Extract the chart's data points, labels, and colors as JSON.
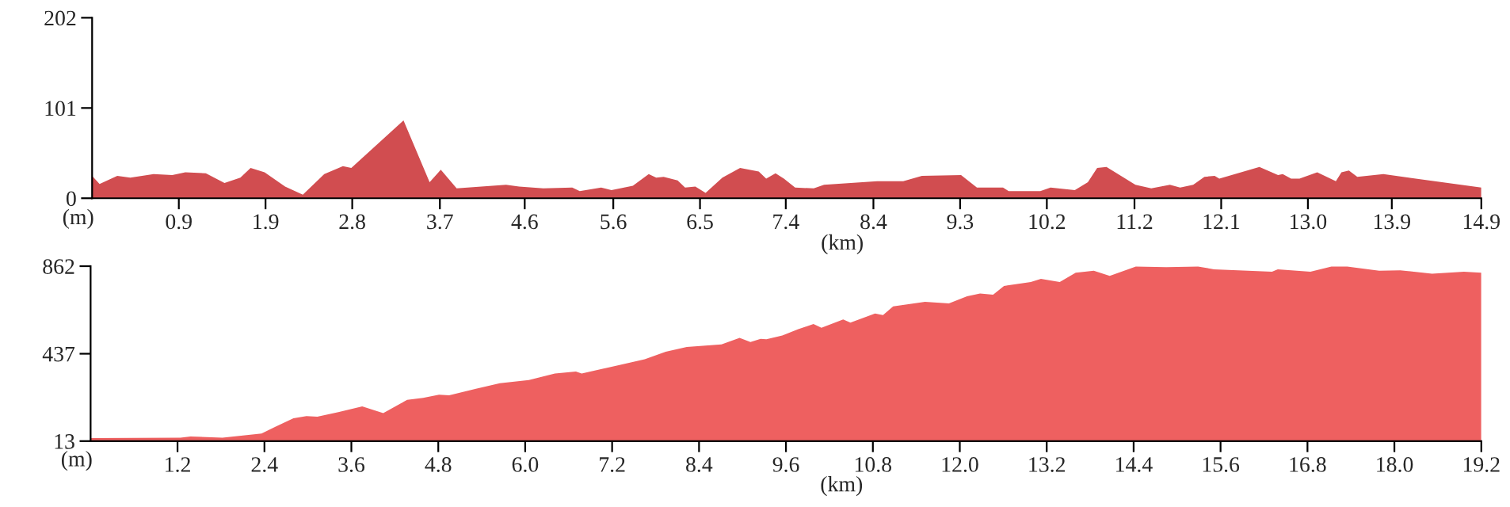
{
  "chart_data": [
    {
      "type": "area",
      "xlabel": "(km)",
      "ylabel": "(m)",
      "xlim": [
        0,
        14.9
      ],
      "ylim": [
        0,
        202
      ],
      "yticks": [
        0,
        101,
        202
      ],
      "xticks": [
        {
          "value": 0.93,
          "label": "0.9"
        },
        {
          "value": 1.86,
          "label": "1.9"
        },
        {
          "value": 2.79,
          "label": "2.8"
        },
        {
          "value": 3.73,
          "label": "3.7"
        },
        {
          "value": 4.64,
          "label": "4.6"
        },
        {
          "value": 5.59,
          "label": "5.6"
        },
        {
          "value": 6.52,
          "label": "6.5"
        },
        {
          "value": 7.44,
          "label": "7.4"
        },
        {
          "value": 8.38,
          "label": "8.4"
        },
        {
          "value": 9.31,
          "label": "9.3"
        },
        {
          "value": 10.24,
          "label": "10.2"
        },
        {
          "value": 11.18,
          "label": "11.2"
        },
        {
          "value": 12.11,
          "label": "12.1"
        },
        {
          "value": 13.04,
          "label": "13.0"
        },
        {
          "value": 13.94,
          "label": "13.9"
        },
        {
          "value": 14.9,
          "label": "14.9"
        }
      ],
      "series": [
        {
          "color": "#d14d50",
          "x": [
            0,
            0.08,
            0.27,
            0.41,
            0.66,
            0.86,
            1.0,
            1.22,
            1.42,
            1.59,
            1.7,
            1.85,
            2.07,
            2.26,
            2.49,
            2.69,
            2.78,
            3.34,
            3.62,
            3.74,
            3.91,
            4.44,
            4.58,
            4.84,
            5.15,
            5.23,
            5.46,
            5.57,
            5.8,
            5.97,
            6.05,
            6.13,
            6.28,
            6.36,
            6.47,
            6.58,
            6.76,
            6.95,
            7.15,
            7.23,
            7.33,
            7.42,
            7.54,
            7.74,
            7.85,
            8.42,
            8.7,
            8.9,
            9.32,
            9.49,
            9.77,
            9.83,
            10.17,
            10.28,
            10.54,
            10.68,
            10.78,
            10.88,
            11.19,
            11.36,
            11.56,
            11.67,
            11.81,
            11.93,
            12.04,
            12.09,
            12.52,
            12.72,
            12.77,
            12.86,
            12.95,
            13.14,
            13.34,
            13.4,
            13.48,
            13.57,
            13.85,
            14.9
          ],
          "values": [
            25,
            16,
            25,
            23,
            27,
            26,
            29,
            28,
            17,
            23,
            34,
            29,
            13,
            4,
            27,
            36,
            34,
            87,
            18,
            32,
            11,
            15,
            13,
            11,
            12,
            8,
            12,
            9,
            14,
            27,
            23,
            24,
            20,
            12,
            13,
            6,
            23,
            34,
            30,
            22,
            28,
            22,
            12,
            11,
            15,
            19,
            19,
            25,
            26,
            12,
            12,
            8,
            8,
            12,
            9,
            18,
            34,
            35,
            15,
            11,
            15,
            12,
            15,
            24,
            25,
            22,
            35,
            26,
            27,
            22,
            22,
            29,
            19,
            29,
            31,
            24,
            27,
            12
          ]
        }
      ]
    },
    {
      "type": "area",
      "xlabel": "(km)",
      "ylabel": "(m)",
      "xlim": [
        0,
        19.2
      ],
      "ylim": [
        13,
        862
      ],
      "yticks": [
        13,
        437,
        862
      ],
      "xticks": [
        1.2,
        2.4,
        3.6,
        4.8,
        {
          "value": 6,
          "label": "6.0"
        },
        7.2,
        8.4,
        9.6,
        10.8,
        {
          "value": 12,
          "label": "12.0"
        },
        13.2,
        14.4,
        15.6,
        16.8,
        {
          "value": 18,
          "label": "18.0"
        },
        19.2
      ],
      "series": [
        {
          "color": "#ee6060",
          "x": [
            0,
            1.24,
            1.38,
            1.82,
            2.36,
            2.55,
            2.8,
            2.98,
            3.13,
            3.42,
            3.75,
            4.04,
            4.37,
            4.59,
            4.81,
            4.95,
            5.32,
            5.65,
            6.05,
            6.41,
            6.7,
            6.78,
            7.29,
            7.65,
            7.94,
            8.23,
            8.71,
            8.96,
            9.11,
            9.25,
            9.33,
            9.55,
            9.77,
            9.98,
            10.09,
            10.39,
            10.49,
            10.83,
            10.94,
            11.08,
            11.52,
            11.85,
            12.1,
            12.28,
            12.46,
            12.61,
            12.98,
            13.12,
            13.38,
            13.6,
            13.85,
            14.07,
            14.43,
            14.85,
            15.29,
            15.51,
            16.31,
            16.39,
            16.84,
            17.13,
            17.35,
            17.79,
            18.08,
            18.52,
            18.96,
            19.2
          ],
          "values": [
            28,
            30,
            35,
            30,
            50,
            82,
            124,
            134,
            131,
            154,
            181,
            149,
            213,
            223,
            238,
            235,
            267,
            294,
            309,
            341,
            351,
            341,
            381,
            410,
            447,
            470,
            482,
            514,
            494,
            509,
            507,
            526,
            556,
            581,
            563,
            603,
            588,
            632,
            625,
            667,
            689,
            681,
            716,
            729,
            724,
            766,
            785,
            800,
            785,
            830,
            840,
            815,
            860,
            857,
            860,
            847,
            835,
            847,
            835,
            860,
            860,
            840,
            842,
            825,
            835,
            830
          ]
        }
      ]
    }
  ]
}
